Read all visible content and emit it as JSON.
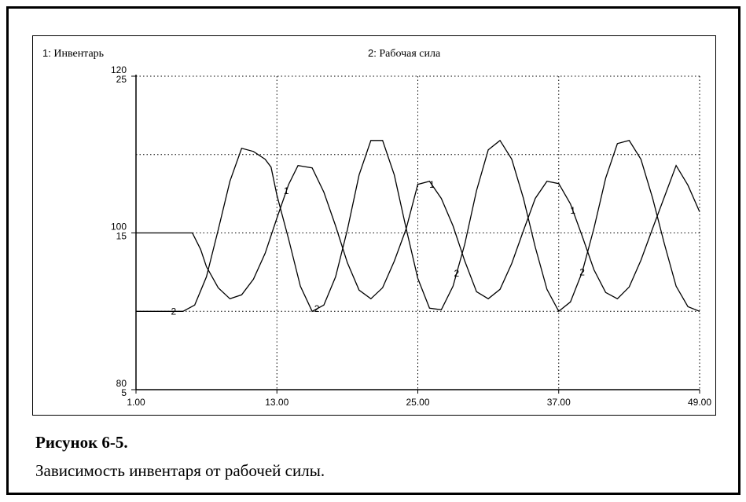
{
  "chart_data": {
    "type": "line",
    "legend": [
      {
        "number": "1:",
        "label": "Инвентарь"
      },
      {
        "number": "2:",
        "label": "Рабочая сила"
      }
    ],
    "x_ticks": [
      "1.00",
      "13.00",
      "25.00",
      "37.00",
      "49.00"
    ],
    "xlim": [
      1,
      49
    ],
    "axis1": {
      "ylim": [
        80,
        120
      ],
      "ticks": [
        "80",
        "100",
        "120"
      ]
    },
    "axis2": {
      "ylim": [
        5,
        25
      ],
      "ticks": [
        "5",
        "15",
        "25"
      ]
    },
    "grid": true,
    "series": [
      {
        "marker": "1",
        "axis": "axis1",
        "x": [
          1,
          5.8,
          6.5,
          7,
          8,
          9,
          10,
          11,
          12,
          13,
          14,
          14.8,
          16,
          17,
          18,
          19,
          20,
          21,
          22,
          23,
          24,
          25,
          26,
          27,
          28,
          29,
          30,
          31,
          32,
          33,
          34,
          35,
          36,
          37,
          38,
          39,
          40,
          41,
          42,
          43,
          44,
          45,
          46,
          47,
          48,
          49
        ],
        "y": [
          100,
          100,
          97.9,
          95.7,
          93,
          91.6,
          92.1,
          94.1,
          97.4,
          101.9,
          106.2,
          108.6,
          108.3,
          105.2,
          100.9,
          96.2,
          92.7,
          91.6,
          93,
          96.4,
          100.5,
          106.2,
          106.6,
          104.4,
          100.9,
          96.4,
          92.5,
          91.6,
          92.8,
          96.1,
          100.3,
          104.4,
          106.6,
          106.3,
          103.7,
          99.6,
          95.3,
          92.4,
          91.6,
          93.1,
          96.5,
          100.6,
          104.6,
          108.6,
          106.1,
          102.7
        ],
        "labels_at": [
          13.8,
          26.2,
          38.2
        ]
      },
      {
        "marker": "2",
        "axis": "axis2",
        "x": [
          1,
          4.5,
          5,
          6,
          7,
          8,
          9,
          10,
          11,
          12,
          12.5,
          13,
          14,
          15,
          16,
          17,
          18,
          19,
          20,
          21,
          22,
          23,
          24,
          25,
          26,
          27,
          28,
          29,
          30,
          31,
          32,
          33,
          34,
          35,
          36,
          37,
          38,
          39,
          40,
          41,
          42,
          43,
          44,
          45,
          46,
          47,
          48,
          49
        ],
        "y": [
          10,
          10,
          10,
          10.4,
          12.2,
          15.2,
          18.3,
          20.4,
          20.2,
          19.7,
          19.2,
          17.4,
          14.6,
          11.6,
          10,
          10.4,
          12.2,
          15.2,
          18.7,
          20.9,
          20.9,
          18.7,
          15.3,
          12.1,
          10.2,
          10.1,
          11.6,
          14.3,
          17.7,
          20.3,
          20.9,
          19.7,
          17.2,
          14.1,
          11.4,
          10,
          10.6,
          12.5,
          15.3,
          18.5,
          20.7,
          20.9,
          19.7,
          17.2,
          14.3,
          11.6,
          10.3,
          10
        ],
        "labels_at": [
          4.2,
          16.4,
          28.3,
          39
        ]
      }
    ]
  },
  "caption": {
    "title": "Рисунок 6-5.",
    "text": "Зависимость инвентаря от рабочей силы."
  }
}
